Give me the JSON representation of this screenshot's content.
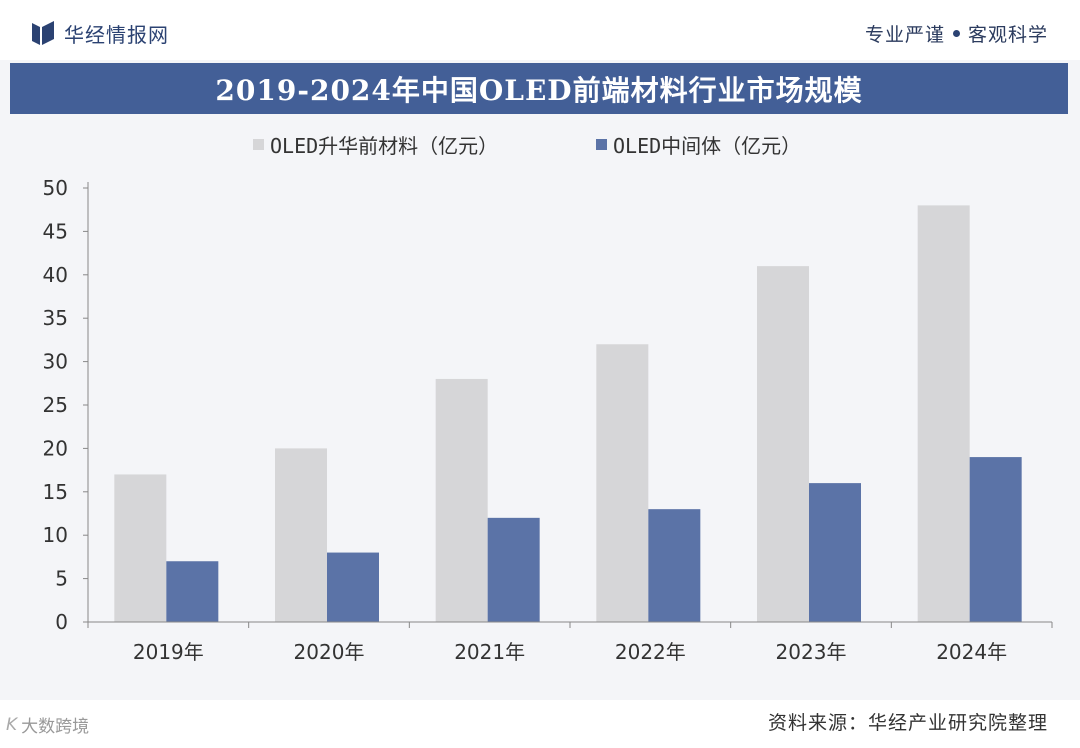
{
  "header": {
    "brand": "华经情报网",
    "slogan_left": "专业严谨",
    "slogan_right": "客观科学"
  },
  "colors": {
    "series1": "#d6d6d8",
    "series2": "#5b73a7",
    "title_bg": "#435f97"
  },
  "chart_data": {
    "type": "bar",
    "title": "2019-2024年中国OLED前端材料行业市场规模",
    "categories": [
      "2019年",
      "2020年",
      "2021年",
      "2022年",
      "2023年",
      "2024年"
    ],
    "series": [
      {
        "name": "OLED升华前材料（亿元）",
        "values": [
          17,
          20,
          28,
          32,
          41,
          48
        ]
      },
      {
        "name": "OLED中间体（亿元）",
        "values": [
          7,
          8,
          12,
          13,
          16,
          19
        ]
      }
    ],
    "ylim": [
      0,
      50
    ],
    "yticks": [
      "0",
      "5",
      "10",
      "15",
      "20",
      "25",
      "30",
      "35",
      "40",
      "45",
      "50"
    ],
    "xlabel": "",
    "ylabel": "",
    "legend_position": "top"
  },
  "footer": {
    "source": "资料来源：华经产业研究院整理",
    "credit": "大数跨境"
  }
}
